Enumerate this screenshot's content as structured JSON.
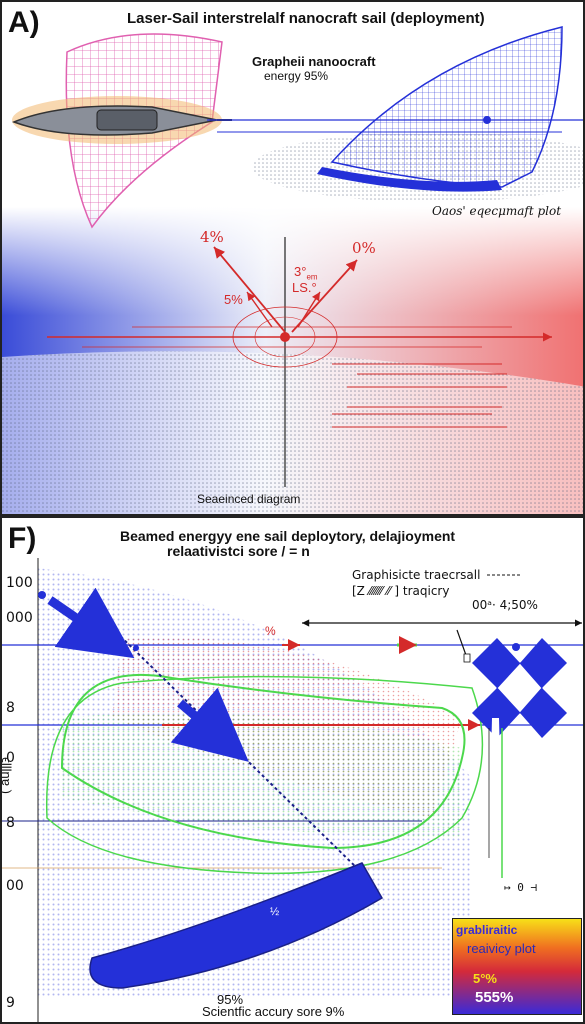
{
  "panel_a": {
    "letter": "A)",
    "title": "Laser-Sail interstrelalf nanocraft   sail (deployment)",
    "craft_name": "Grapheii nanoocraft",
    "energy": "energy 95%",
    "plot_label": "Oaos' eqecμmaft plot",
    "angle_left": "4%",
    "angle_right": "0%",
    "center_top": "3°",
    "center_sub": "em",
    "center_label": "LS.°",
    "left_mid": "5%",
    "diagram_label": "Seaeinced diagram"
  },
  "panel_f": {
    "letter": "F)",
    "title_line1": "Beamed energyy ene sail deploytory,     delajioyment",
    "title_line2": "relaativistci sore / = n",
    "y_labels": [
      "100",
      "000",
      "8",
      "0",
      "8",
      "00",
      "9"
    ],
    "y_axis_title": "ϵlllnɐ )",
    "legend_line1": "Graphisicte  traecrsall",
    "legend_line2": "[Z ⁄⁄⁄⁄⁄⁄⁄ ⁄⁄ ]   traqicry",
    "legend_values": "00ᵃ·  4;50%",
    "arrow_label": "%",
    "small_mark": "↦ 0 ⊣",
    "inner_label": "½",
    "bottom_pct": "95%",
    "footer": "Scientfic accury sore 9%",
    "color_legend": {
      "line1": "grabliraitic",
      "line2": "reaivicy plot",
      "pct1": "5°%",
      "pct2": "555%"
    }
  },
  "colors": {
    "blue": "#2430d8",
    "red": "#d42a2a",
    "green": "#4cd84c",
    "pink": "#e060b0"
  }
}
